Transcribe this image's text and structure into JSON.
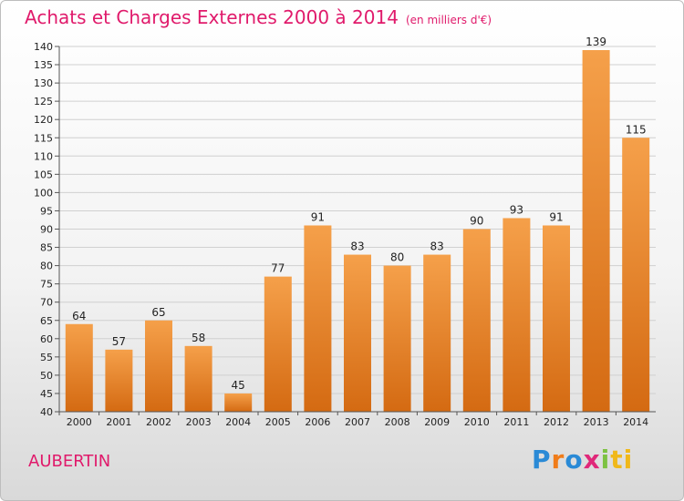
{
  "header": {
    "title": "Achats et Charges Externes 2000 à 2014",
    "subtitle": "(en milliers d'€)"
  },
  "footer": {
    "commune": "AUBERTIN",
    "brand_letters": [
      "P",
      "r",
      "o",
      "x",
      "i",
      "ti"
    ]
  },
  "colors": {
    "bar_top": "#f5a04a",
    "bar_bottom": "#d46a12",
    "title": "#e01a6b"
  },
  "chart_data": {
    "type": "bar",
    "title": "Achats et Charges Externes 2000 à 2014",
    "subtitle": "(en milliers d'€)",
    "categories": [
      "2000",
      "2001",
      "2002",
      "2003",
      "2004",
      "2005",
      "2006",
      "2007",
      "2008",
      "2009",
      "2010",
      "2011",
      "2012",
      "2013",
      "2014"
    ],
    "values": [
      64,
      57,
      65,
      58,
      45,
      77,
      91,
      83,
      80,
      83,
      90,
      93,
      91,
      139,
      115
    ],
    "ylim": [
      40,
      140
    ],
    "yticks": [
      40,
      45,
      50,
      55,
      60,
      65,
      70,
      75,
      80,
      85,
      90,
      95,
      100,
      105,
      110,
      115,
      120,
      125,
      130,
      135,
      140
    ],
    "grid": true
  }
}
